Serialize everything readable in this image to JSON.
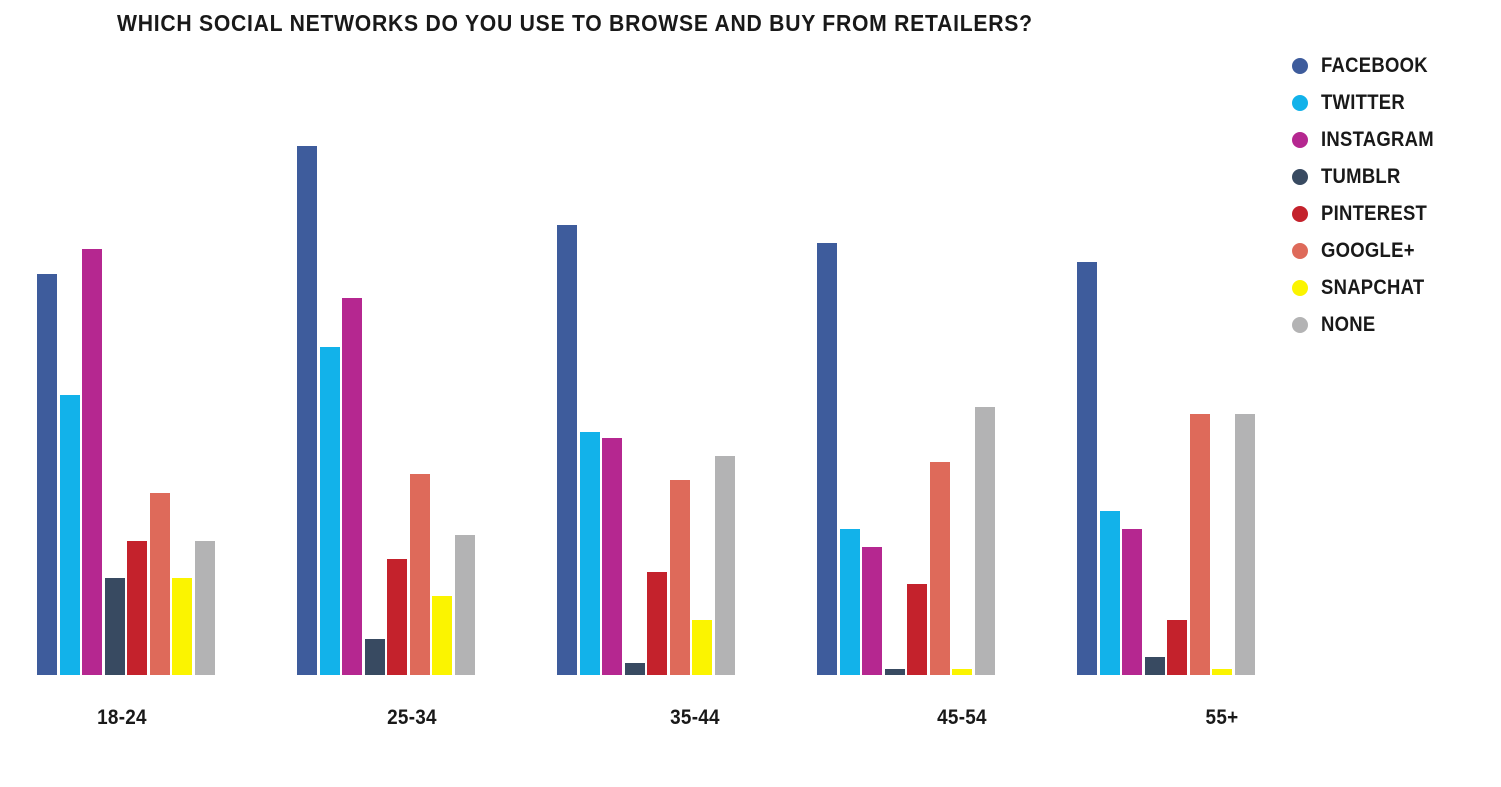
{
  "title": "WHICH SOCIAL NETWORKS DO YOU USE TO BROWSE AND BUY FROM RETAILERS?",
  "chart_data": {
    "type": "bar",
    "title": "WHICH SOCIAL NETWORKS DO YOU USE TO BROWSE AND BUY FROM RETAILERS?",
    "categories": [
      "18-24",
      "25-34",
      "35-44",
      "45-54",
      "55+"
    ],
    "series": [
      {
        "name": "FACEBOOK",
        "color": "#3e5c9c",
        "values": [
          66,
          87,
          74,
          71,
          68
        ]
      },
      {
        "name": "TWITTER",
        "color": "#12b2ea",
        "values": [
          46,
          54,
          40,
          24,
          27
        ]
      },
      {
        "name": "INSTAGRAM",
        "color": "#b52790",
        "values": [
          70,
          62,
          39,
          21,
          24
        ]
      },
      {
        "name": "TUMBLR",
        "color": "#384a61",
        "values": [
          16,
          6,
          2,
          1,
          3
        ]
      },
      {
        "name": "PINTEREST",
        "color": "#c4222c",
        "values": [
          22,
          19,
          17,
          15,
          9
        ]
      },
      {
        "name": "GOOGLE+",
        "color": "#de6a5a",
        "values": [
          30,
          33,
          32,
          35,
          43
        ]
      },
      {
        "name": "SNAPCHAT",
        "color": "#fbf400",
        "values": [
          16,
          13,
          9,
          1,
          1
        ]
      },
      {
        "name": "NONE",
        "color": "#b3b3b4",
        "values": [
          22,
          23,
          36,
          44,
          43
        ]
      }
    ],
    "xlabel": "",
    "ylabel": "",
    "ylim": [
      0,
      100
    ],
    "grid": false,
    "axis_lines_visible": false,
    "legend_position": "right",
    "value_unit": "percent (estimated from bar heights; no axis or data labels shown)"
  }
}
